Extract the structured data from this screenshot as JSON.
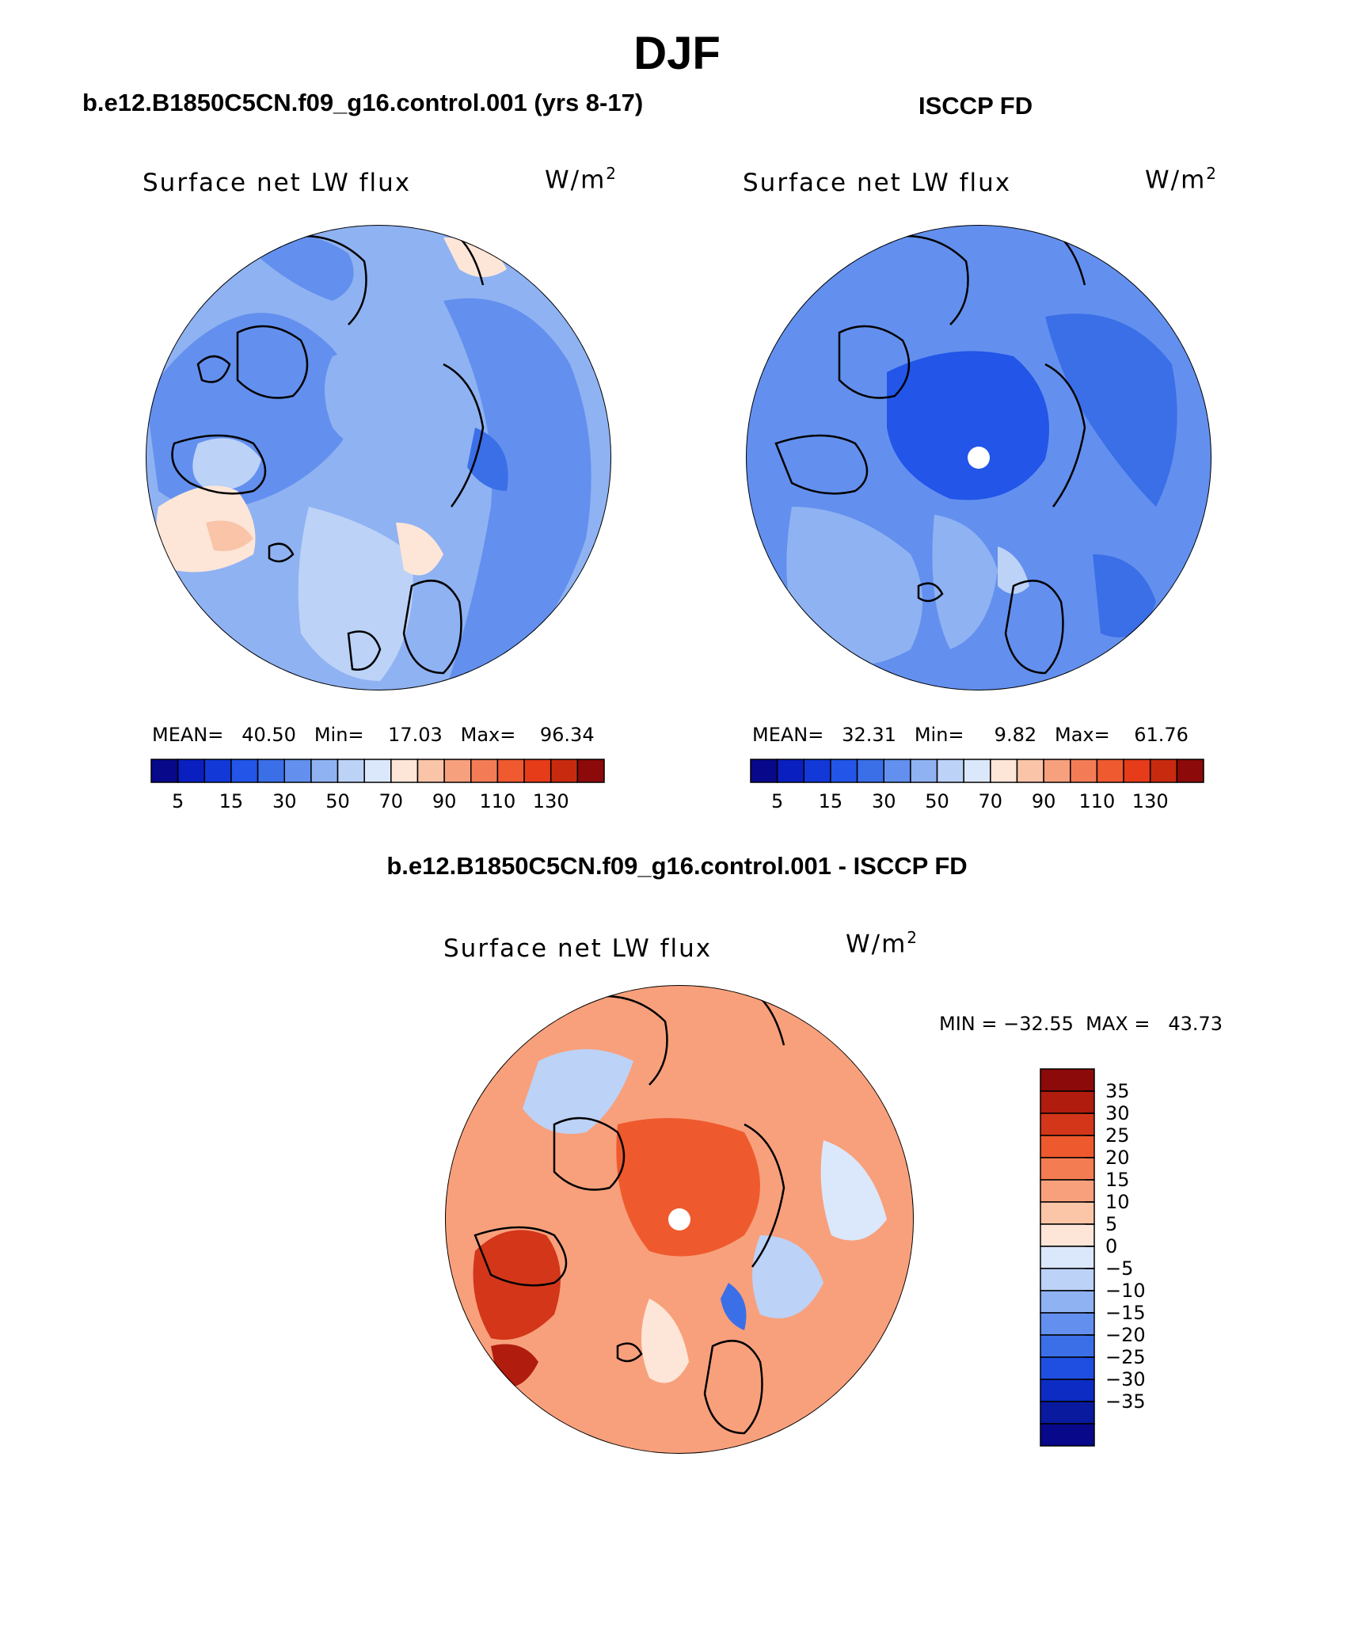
{
  "header": {
    "title": "DJF",
    "left_title": "b.e12.B1850C5CN.f09_g16.control.001 (yrs 8-17)",
    "right_title": "ISCCP FD",
    "diff_title": "b.e12.B1850C5CN.f09_g16.control.001 - ISCCP FD"
  },
  "panels": {
    "model": {
      "variable": "Surface net LW flux",
      "units": "W/m",
      "units_sup": "2",
      "stats": "MEAN=   40.50   Min=    17.03   Max=    96.34"
    },
    "obs": {
      "variable": "Surface net LW flux",
      "units": "W/m",
      "units_sup": "2",
      "stats": "MEAN=   32.31   Min=     9.82   Max=    61.76"
    },
    "diff": {
      "variable": "Surface net LW flux",
      "units": "W/m",
      "units_sup": "2",
      "stats": "MIN = −32.55  MAX =   43.73"
    }
  },
  "colorbars": {
    "abs_labels": [
      "5",
      "15",
      "30",
      "50",
      "70",
      "90",
      "110",
      "130"
    ],
    "abs_colors": [
      "#08088a",
      "#0a1fbf",
      "#1238d8",
      "#2255e8",
      "#3b6fe8",
      "#6390ee",
      "#8fb2f2",
      "#bcd2f7",
      "#dbe8fb",
      "#fde6d8",
      "#f9c4a8",
      "#f6a07e",
      "#f37c56",
      "#ef5a30",
      "#e63c1a",
      "#c82a0f",
      "#8c0a0a"
    ],
    "diff_labels": [
      "35",
      "30",
      "25",
      "20",
      "15",
      "10",
      "5",
      "0",
      "−5",
      "−10",
      "−15",
      "−20",
      "−25",
      "−30",
      "−35"
    ],
    "diff_colors": [
      "#8c0a0a",
      "#b01c0d",
      "#d4361a",
      "#ee5a2e",
      "#f47c52",
      "#f8a07c",
      "#fbc6a8",
      "#fde6d8",
      "#dbe8fb",
      "#bcd2f7",
      "#8fb2f2",
      "#6390ee",
      "#3b6fe8",
      "#1f4fe0",
      "#0d2cc4",
      "#0a1a9e",
      "#08088a"
    ]
  },
  "map_colors": {
    "model_base": "#8fb2f2",
    "obs_base": "#6390ee",
    "diff_base": "#f8a07c"
  }
}
